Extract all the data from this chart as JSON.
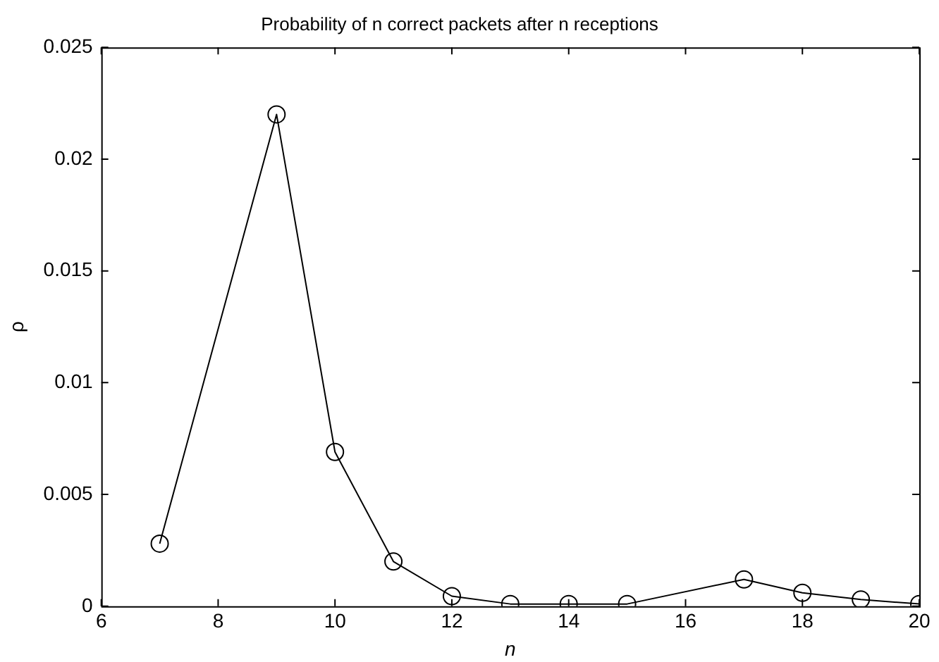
{
  "chart_data": {
    "type": "line",
    "title": "Probability of n correct packets after n receptions",
    "xlabel": "n",
    "ylabel": "ρ",
    "x": [
      7,
      9,
      10,
      11,
      12,
      13,
      14,
      15,
      17,
      18,
      19,
      20
    ],
    "series": [
      {
        "color": "#000000",
        "values": [
          0.0028,
          0.022,
          0.0069,
          0.002,
          0.00045,
          0.0001,
          0.0001,
          0.0001,
          0.0012,
          0.0006,
          0.0003,
          0.0001
        ]
      }
    ],
    "xlim": [
      6,
      20
    ],
    "xticks": [
      6,
      8,
      10,
      12,
      14,
      16,
      18,
      20
    ],
    "ylim": [
      0,
      0.025
    ],
    "yticks": [
      0,
      0.005,
      0.01,
      0.015,
      0.02,
      0.025
    ],
    "grid": false,
    "legend": false,
    "marker": "circle",
    "line_style": "solid"
  }
}
